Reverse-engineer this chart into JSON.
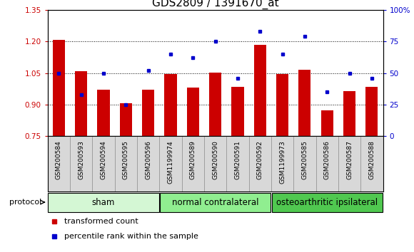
{
  "title": "GDS2809 / 1391670_at",
  "categories": [
    "GSM200584",
    "GSM200593",
    "GSM200594",
    "GSM200595",
    "GSM200596",
    "GSM1199974",
    "GSM200589",
    "GSM200590",
    "GSM200591",
    "GSM200592",
    "GSM1199973",
    "GSM200585",
    "GSM200586",
    "GSM200587",
    "GSM200588"
  ],
  "red_values": [
    1.208,
    1.06,
    0.97,
    0.905,
    0.97,
    1.047,
    0.982,
    1.053,
    0.983,
    1.183,
    1.047,
    1.065,
    0.872,
    0.965,
    0.983
  ],
  "blue_values": [
    50,
    33,
    50,
    25,
    52,
    65,
    62,
    75,
    46,
    83,
    65,
    79,
    35,
    50,
    46
  ],
  "ylim_left": [
    0.75,
    1.35
  ],
  "ylim_right": [
    0,
    100
  ],
  "yticks_left": [
    0.75,
    0.9,
    1.05,
    1.2,
    1.35
  ],
  "yticks_right": [
    0,
    25,
    50,
    75,
    100
  ],
  "groups": [
    {
      "label": "sham",
      "start": 0,
      "end": 5,
      "color": "#d4f7d4"
    },
    {
      "label": "normal contralateral",
      "start": 5,
      "end": 10,
      "color": "#90ee90"
    },
    {
      "label": "osteoarthritic ipsilateral",
      "start": 10,
      "end": 15,
      "color": "#50c850"
    }
  ],
  "protocol_label": "protocol",
  "bar_color": "#cc0000",
  "dot_color": "#0000cc",
  "bar_baseline": 0.75,
  "bar_width": 0.55,
  "bg_color": "#ffffff",
  "plot_bg": "#ffffff",
  "tick_label_color_left": "#cc0000",
  "tick_label_color_right": "#0000cc",
  "legend_red_label": "transformed count",
  "legend_blue_label": "percentile rank within the sample",
  "title_fontsize": 11,
  "tick_fontsize": 7.5,
  "cat_fontsize": 6.5,
  "group_fontsize": 8.5,
  "legend_fontsize": 8,
  "xtick_bg": "#d8d8d8",
  "cell_line_color": "#888888"
}
